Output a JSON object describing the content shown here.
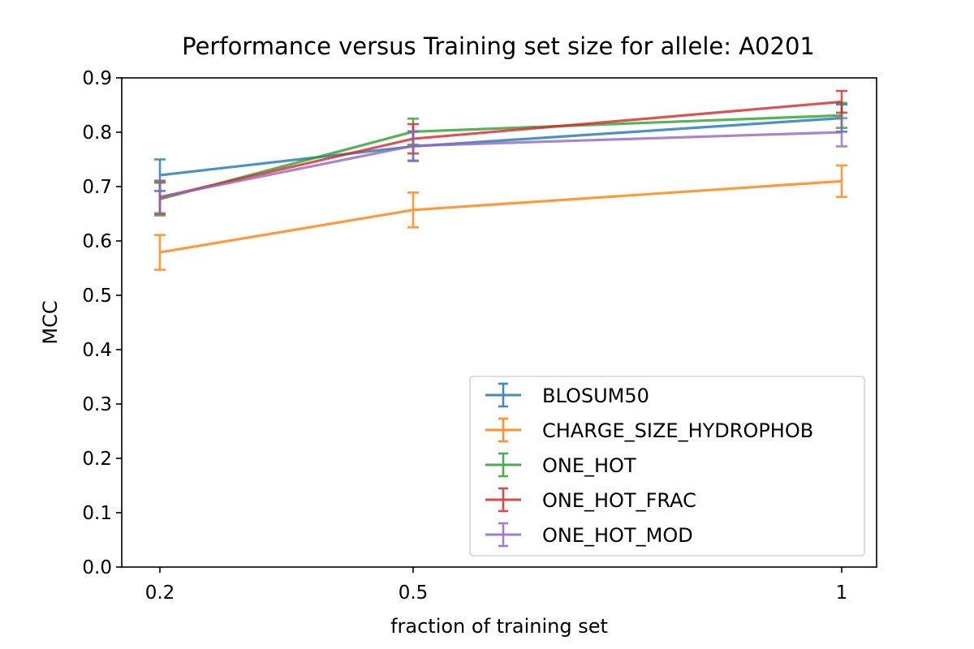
{
  "chart_data": {
    "type": "line",
    "title": "Performance versus Training set size for allele: A0201",
    "xlabel": "fraction of training set",
    "ylabel": "MCC",
    "x": [
      0.2,
      0.5,
      1
    ],
    "x_tick_labels": [
      "0.2",
      "0.5",
      "1"
    ],
    "ylim": [
      0,
      0.9
    ],
    "y_ticks": [
      0.0,
      0.1,
      0.2,
      0.3,
      0.4,
      0.5,
      0.6,
      0.7,
      0.8,
      0.9
    ],
    "y_tick_labels": [
      "0.0",
      "0.1",
      "0.2",
      "0.3",
      "0.4",
      "0.5",
      "0.6",
      "0.7",
      "0.8",
      "0.9"
    ],
    "grid": false,
    "legend_position": "lower-right",
    "series": [
      {
        "name": "BLOSUM50",
        "color": "#1f77b4",
        "values": [
          0.721,
          0.774,
          0.826
        ],
        "errors": [
          0.029,
          0.027,
          0.025
        ]
      },
      {
        "name": "CHARGE_SIZE_HYDROPHOB",
        "color": "#ff7f0e",
        "values": [
          0.579,
          0.657,
          0.71
        ],
        "errors": [
          0.032,
          0.032,
          0.029
        ]
      },
      {
        "name": "ONE_HOT",
        "color": "#2ca02c",
        "values": [
          0.677,
          0.801,
          0.831
        ],
        "errors": [
          0.03,
          0.024,
          0.023
        ]
      },
      {
        "name": "ONE_HOT_FRAC",
        "color": "#d62728",
        "values": [
          0.68,
          0.788,
          0.856
        ],
        "errors": [
          0.03,
          0.027,
          0.02
        ]
      },
      {
        "name": "ONE_HOT_MOD",
        "color": "#9467bd",
        "values": [
          0.681,
          0.775,
          0.8
        ],
        "errors": [
          0.03,
          0.027,
          0.026
        ]
      }
    ]
  }
}
